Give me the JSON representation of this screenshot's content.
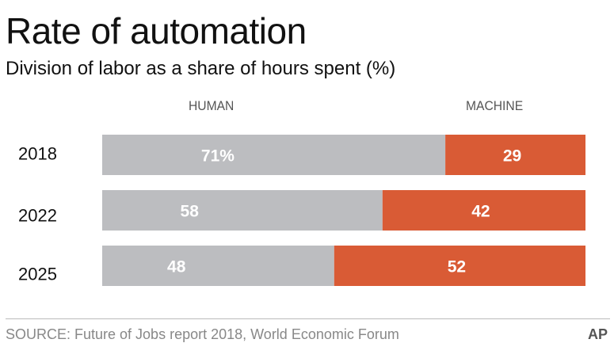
{
  "header": {
    "title": "Rate of automation",
    "subtitle": "Division of labor as a share of hours spent (%)"
  },
  "legend": {
    "human": "HUMAN",
    "machine": "MACHINE"
  },
  "colors": {
    "human": "#bcbdc0",
    "machine": "#d95b35",
    "label": "#ffffff"
  },
  "chart_data": {
    "type": "bar",
    "stacked": true,
    "orientation": "horizontal",
    "categories": [
      "2018",
      "2022",
      "2025"
    ],
    "series": [
      {
        "name": "HUMAN",
        "values": [
          71,
          58,
          48
        ],
        "labels": [
          "71%",
          "58",
          "48"
        ]
      },
      {
        "name": "MACHINE",
        "values": [
          29,
          42,
          52
        ],
        "labels": [
          "29",
          "42",
          "52"
        ]
      }
    ],
    "xlim": [
      0,
      100
    ],
    "grid": false,
    "legend_position": "top"
  },
  "footer": {
    "source": "SOURCE: Future of Jobs report 2018, World Economic Forum",
    "credit": "AP"
  }
}
